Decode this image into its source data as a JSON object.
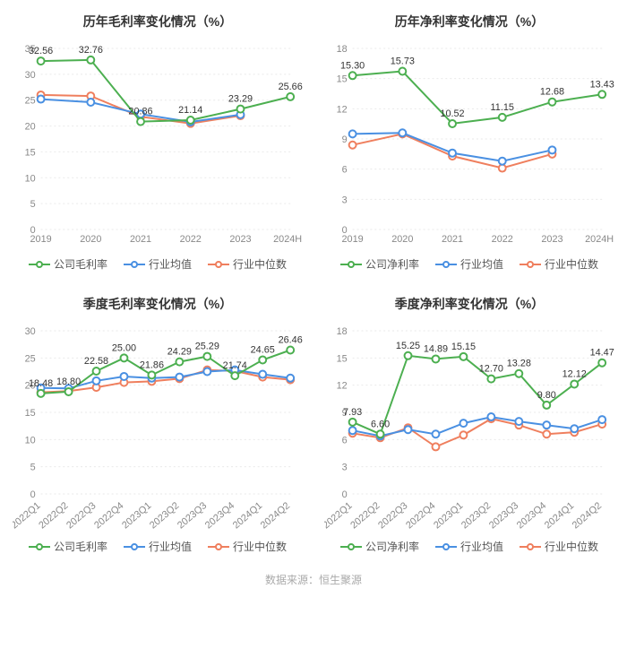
{
  "colors": {
    "company": "#4caf50",
    "industry_avg": "#4a90e2",
    "industry_median": "#ef7f5e",
    "grid": "#e9e9e9",
    "axis": "#cccccc",
    "text": "#888888",
    "label": "#333333",
    "background": "#ffffff"
  },
  "marker": {
    "radius": 4,
    "style": "open-circle",
    "stroke_width": 2
  },
  "line_width": 2,
  "title_fontsize": 14,
  "axis_fontsize": 11,
  "label_fontsize": 11,
  "legend_fontsize": 12,
  "charts": [
    {
      "id": "annual_gross",
      "title": "历年毛利率变化情况（%）",
      "categories": [
        "2019",
        "2020",
        "2021",
        "2022",
        "2023",
        "2024H1"
      ],
      "ylim": [
        0,
        35
      ],
      "ytick_step": 5,
      "rotate_x": 0,
      "legend": [
        {
          "key": "company",
          "label": "公司毛利率"
        },
        {
          "key": "industry_avg",
          "label": "行业均值"
        },
        {
          "key": "industry_median",
          "label": "行业中位数"
        }
      ],
      "series": {
        "company": [
          32.56,
          32.76,
          20.86,
          21.14,
          23.29,
          25.66
        ],
        "industry_avg": [
          25.2,
          24.6,
          22.3,
          20.8,
          22.2,
          null
        ],
        "industry_median": [
          26.0,
          25.8,
          21.8,
          20.5,
          22.0,
          null
        ]
      },
      "labels_series": "company",
      "labels": {
        "0": "32.56",
        "1": "32.76",
        "2": "20.86",
        "3": "21.14",
        "4": "23.29",
        "5": "25.66"
      }
    },
    {
      "id": "annual_net",
      "title": "历年净利率变化情况（%）",
      "categories": [
        "2019",
        "2020",
        "2021",
        "2022",
        "2023",
        "2024H1"
      ],
      "ylim": [
        0,
        18
      ],
      "ytick_step": 3,
      "rotate_x": 0,
      "legend": [
        {
          "key": "company",
          "label": "公司净利率"
        },
        {
          "key": "industry_avg",
          "label": "行业均值"
        },
        {
          "key": "industry_median",
          "label": "行业中位数"
        }
      ],
      "series": {
        "company": [
          15.3,
          15.73,
          10.52,
          11.15,
          12.68,
          13.43
        ],
        "industry_avg": [
          9.5,
          9.6,
          7.6,
          6.8,
          7.9,
          null
        ],
        "industry_median": [
          8.4,
          9.5,
          7.3,
          6.1,
          7.5,
          null
        ]
      },
      "labels_series": "company",
      "labels": {
        "0": "15.30",
        "1": "15.73",
        "2": "10.52",
        "3": "11.15",
        "4": "12.68",
        "5": "13.43"
      }
    },
    {
      "id": "quarter_gross",
      "title": "季度毛利率变化情况（%）",
      "categories": [
        "2022Q1",
        "2022Q2",
        "2022Q3",
        "2022Q4",
        "2023Q1",
        "2023Q2",
        "2023Q3",
        "2023Q4",
        "2024Q1",
        "2024Q2"
      ],
      "ylim": [
        0,
        30
      ],
      "ytick_step": 5,
      "rotate_x": -40,
      "legend": [
        {
          "key": "company",
          "label": "公司毛利率"
        },
        {
          "key": "industry_avg",
          "label": "行业均值"
        },
        {
          "key": "industry_median",
          "label": "行业中位数"
        }
      ],
      "series": {
        "company": [
          18.48,
          18.8,
          22.58,
          25.0,
          21.86,
          24.29,
          25.29,
          21.74,
          24.65,
          26.46
        ],
        "industry_avg": [
          19.5,
          19.4,
          20.8,
          21.6,
          21.3,
          21.5,
          22.5,
          22.8,
          22.0,
          21.3
        ],
        "industry_median": [
          18.7,
          18.9,
          19.6,
          20.5,
          20.7,
          21.2,
          22.8,
          22.6,
          21.5,
          21.0
        ]
      },
      "labels_series": "company",
      "labels": {
        "0": "18.48",
        "1": "18.80",
        "2": "22.58",
        "3": "25.00",
        "4": "21.86",
        "5": "24.29",
        "6": "25.29",
        "7": "21.74",
        "8": "24.65",
        "9": "26.46"
      }
    },
    {
      "id": "quarter_net",
      "title": "季度净利率变化情况（%）",
      "categories": [
        "2022Q1",
        "2022Q2",
        "2022Q3",
        "2022Q4",
        "2023Q1",
        "2023Q2",
        "2023Q3",
        "2023Q4",
        "2024Q1",
        "2024Q2"
      ],
      "ylim": [
        0,
        18
      ],
      "ytick_step": 3,
      "rotate_x": -40,
      "legend": [
        {
          "key": "company",
          "label": "公司净利率"
        },
        {
          "key": "industry_avg",
          "label": "行业均值"
        },
        {
          "key": "industry_median",
          "label": "行业中位数"
        }
      ],
      "series": {
        "company": [
          7.93,
          6.6,
          15.25,
          14.89,
          15.15,
          12.7,
          13.28,
          9.8,
          12.12,
          14.47
        ],
        "industry_avg": [
          7.0,
          6.4,
          7.1,
          6.6,
          7.8,
          8.5,
          8.0,
          7.6,
          7.2,
          8.2
        ],
        "industry_median": [
          6.7,
          6.2,
          7.3,
          5.2,
          6.5,
          8.3,
          7.6,
          6.6,
          6.8,
          7.7
        ]
      },
      "labels_series": "company",
      "labels": {
        "0": "7.93",
        "1": "6.60",
        "2": "15.25",
        "3": "14.89",
        "4": "15.15",
        "5": "12.70",
        "6": "13.28",
        "7": "9.80",
        "8": "12.12",
        "9": "14.47"
      }
    }
  ],
  "footer": "数据来源：恒生聚源"
}
